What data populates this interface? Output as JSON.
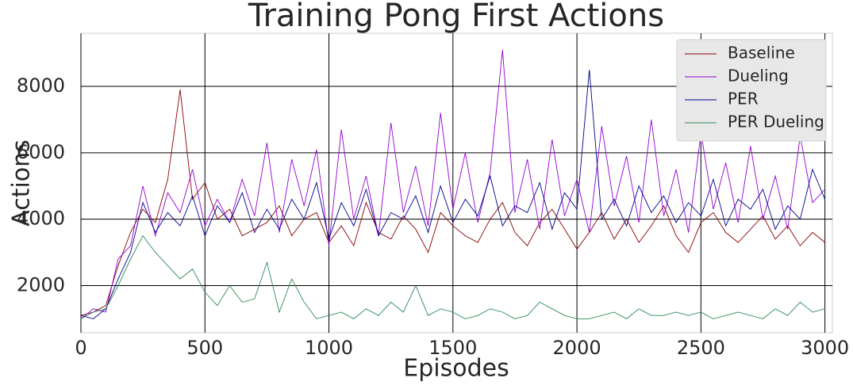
{
  "chart_data": {
    "type": "line",
    "title": "Training Pong First Actions",
    "x_label": "Episodes",
    "y_label": "Actions",
    "x": [
      0,
      50,
      100,
      150,
      200,
      250,
      300,
      350,
      400,
      450,
      500,
      550,
      600,
      650,
      700,
      750,
      800,
      850,
      900,
      950,
      1000,
      1050,
      1100,
      1150,
      1200,
      1250,
      1300,
      1350,
      1400,
      1450,
      1500,
      1550,
      1600,
      1650,
      1700,
      1750,
      1800,
      1850,
      1900,
      1950,
      2000,
      2050,
      2100,
      2150,
      2200,
      2250,
      2300,
      2350,
      2400,
      2450,
      2500,
      2550,
      2600,
      2650,
      2700,
      2750,
      2800,
      2850,
      2900,
      2950,
      3000
    ],
    "series": [
      {
        "name": "Baseline",
        "color": "#8b0000",
        "values": [
          1100,
          1200,
          1400,
          2600,
          3600,
          4300,
          3900,
          5200,
          7900,
          4600,
          5100,
          4000,
          4300,
          3500,
          3700,
          3900,
          4400,
          3500,
          4000,
          4200,
          3300,
          3800,
          3200,
          4500,
          3600,
          3400,
          4100,
          3700,
          3000,
          4200,
          3800,
          3500,
          3300,
          4000,
          4500,
          3600,
          3200,
          3900,
          4300,
          3700,
          3100,
          3600,
          4200,
          3400,
          4000,
          3300,
          3800,
          4400,
          3500,
          3000,
          3900,
          4200,
          3600,
          3300,
          3700,
          4100,
          3400,
          3800,
          3200,
          3600,
          3300
        ]
      },
      {
        "name": "Dueling",
        "color": "#9400d3",
        "values": [
          1000,
          1300,
          1200,
          2800,
          3200,
          5000,
          3500,
          4800,
          4200,
          5500,
          3800,
          4600,
          3900,
          5200,
          4100,
          6300,
          3600,
          5800,
          4400,
          6100,
          3200,
          6700,
          4000,
          5300,
          3500,
          6900,
          4200,
          5600,
          3800,
          7200,
          4300,
          6000,
          3900,
          5400,
          9100,
          4200,
          5800,
          3700,
          6400,
          4100,
          5200,
          3600,
          6800,
          4400,
          5900,
          3900,
          7000,
          4100,
          5500,
          3600,
          6600,
          4300,
          5700,
          3900,
          6200,
          4000,
          5300,
          3700,
          6500,
          4500,
          4900
        ]
      },
      {
        "name": "PER",
        "color": "#00008b",
        "values": [
          1100,
          1000,
          1300,
          2200,
          3000,
          4500,
          3600,
          4200,
          3800,
          4700,
          3500,
          4400,
          3900,
          4800,
          3600,
          4300,
          3700,
          4600,
          4000,
          5100,
          3400,
          4500,
          3800,
          4900,
          3500,
          4200,
          4000,
          4700,
          3600,
          5000,
          3900,
          4600,
          4100,
          5300,
          3800,
          4400,
          4200,
          5100,
          3700,
          4800,
          4300,
          8500,
          4000,
          4600,
          3800,
          5000,
          4200,
          4700,
          3900,
          4500,
          4100,
          5200,
          3800,
          4600,
          4300,
          4900,
          3700,
          4400,
          4000,
          5500,
          4600
        ]
      },
      {
        "name": "PER Dueling",
        "color": "#2e8b57",
        "values": [
          1000,
          1200,
          1300,
          2000,
          2800,
          3500,
          3000,
          2600,
          2200,
          2500,
          1800,
          1400,
          2000,
          1500,
          1600,
          2700,
          1200,
          2200,
          1500,
          1000,
          1100,
          1200,
          1000,
          1300,
          1100,
          1500,
          1200,
          2000,
          1100,
          1300,
          1200,
          1000,
          1100,
          1300,
          1200,
          1000,
          1100,
          1500,
          1300,
          1100,
          1000,
          1000,
          1100,
          1200,
          1000,
          1300,
          1100,
          1100,
          1200,
          1100,
          1200,
          1000,
          1100,
          1200,
          1100,
          1000,
          1300,
          1100,
          1500,
          1200,
          1300
        ]
      }
    ],
    "xlim": [
      0,
      3030
    ],
    "ylim": [
      580,
      9600
    ],
    "xticks": [
      0,
      500,
      1000,
      1500,
      2000,
      2500,
      3000
    ],
    "yticks": [
      2000,
      4000,
      6000,
      8000
    ],
    "grid": true,
    "legend": "upper right"
  }
}
